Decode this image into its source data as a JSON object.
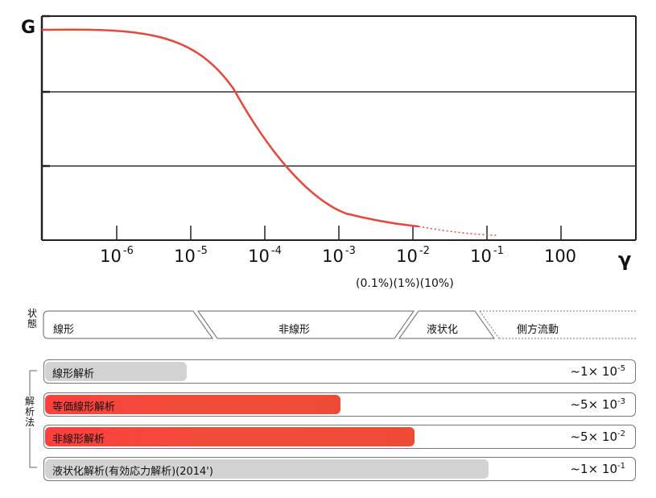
{
  "axis": {
    "y_label": "G",
    "x_label": "γ",
    "ticks": [
      {
        "base": "10",
        "exp": "-6"
      },
      {
        "base": "10",
        "exp": "-5"
      },
      {
        "base": "10",
        "exp": "-4"
      },
      {
        "base": "10",
        "exp": "-3"
      },
      {
        "base": "10",
        "exp": "-2"
      },
      {
        "base": "10",
        "exp": "-1"
      },
      {
        "base": "100",
        "exp": ""
      }
    ],
    "percent_note": "(0.1%)(1%)(10%)"
  },
  "state": {
    "heading": "状態",
    "segments": [
      {
        "label": "線形"
      },
      {
        "label": "非線形"
      },
      {
        "label": "液状化"
      },
      {
        "label": "側方流動"
      }
    ]
  },
  "methods": {
    "heading": "解析法",
    "rows": [
      {
        "label": "線形解析",
        "range_prefix": "~1× 10",
        "range_exp": "-5",
        "bar_style": "gray",
        "bar_fraction": 0.24
      },
      {
        "label": "等価線形解析",
        "range_prefix": "~5× 10",
        "range_exp": "-3",
        "bar_style": "red",
        "bar_fraction": 0.5
      },
      {
        "label": "非線形解析",
        "range_prefix": "~5× 10",
        "range_exp": "-2",
        "bar_style": "red",
        "bar_fraction": 0.625
      },
      {
        "label": "液状化解析(有効応力解析)(2014')",
        "range_prefix": "~1× 10",
        "range_exp": "-1",
        "bar_style": "gray",
        "bar_fraction": 0.75
      }
    ]
  },
  "colors": {
    "curve": "#e8463a",
    "grid": "#222222",
    "bar_red": "#ee4b37",
    "bar_gray": "#d3d3d3"
  }
}
